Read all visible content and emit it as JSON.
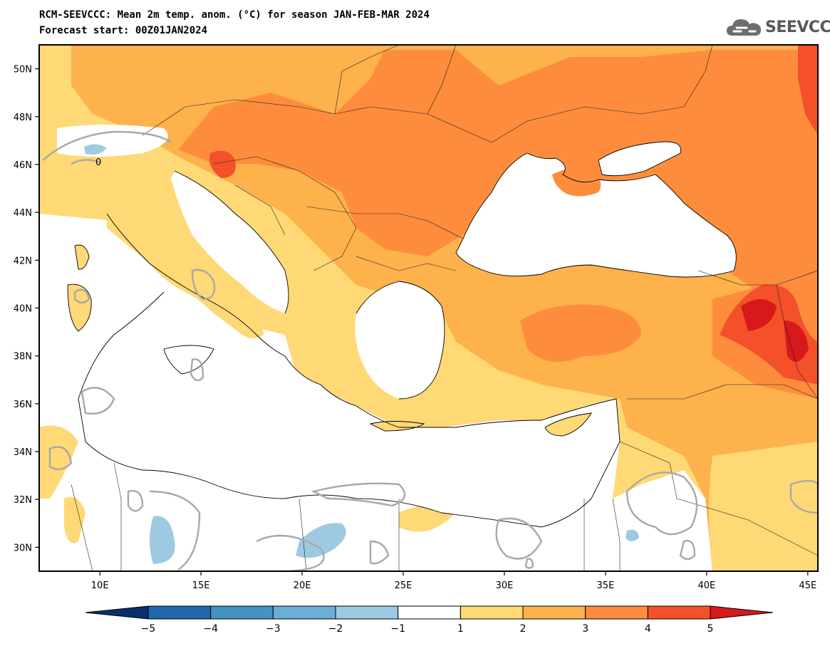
{
  "title": {
    "line1": "RCM-SEEVCCC: Mean 2m temp. anom. (°C) for season JAN-FEB-MAR 2024",
    "line2": "Forecast start: 00Z01JAN2024"
  },
  "logo": {
    "text": "SEEVCCC",
    "icon": "cloud-icon"
  },
  "map": {
    "projection": "plate-carree",
    "lon_range": [
      7,
      45.5
    ],
    "lat_range": [
      29,
      51
    ],
    "lon_ticks": [
      {
        "value": 10,
        "label": "10E"
      },
      {
        "value": 15,
        "label": "15E"
      },
      {
        "value": 20,
        "label": "20E"
      },
      {
        "value": 25,
        "label": "25E"
      },
      {
        "value": 30,
        "label": "30E"
      },
      {
        "value": 35,
        "label": "35E"
      },
      {
        "value": 40,
        "label": "40E"
      },
      {
        "value": 45,
        "label": "45E"
      }
    ],
    "lat_ticks": [
      {
        "value": 50,
        "label": "50N"
      },
      {
        "value": 48,
        "label": "48N"
      },
      {
        "value": 46,
        "label": "46N"
      },
      {
        "value": 44,
        "label": "44N"
      },
      {
        "value": 42,
        "label": "42N"
      },
      {
        "value": 40,
        "label": "40N"
      },
      {
        "value": 38,
        "label": "38N"
      },
      {
        "value": 36,
        "label": "36N"
      },
      {
        "value": 34,
        "label": "34N"
      },
      {
        "value": 32,
        "label": "32N"
      },
      {
        "value": 30,
        "label": "30N"
      }
    ],
    "contour_label": "0"
  },
  "colorbar": {
    "levels": [
      "−5",
      "−4",
      "−3",
      "−2",
      "−1",
      "1",
      "2",
      "3",
      "4",
      "5"
    ],
    "colors": [
      "#08306b",
      "#2166ac",
      "#4393c3",
      "#6baed6",
      "#9ecae1",
      "#ffffff",
      "#fed976",
      "#fdb24c",
      "#fd8d3c",
      "#f4502a",
      "#d7191c"
    ]
  }
}
